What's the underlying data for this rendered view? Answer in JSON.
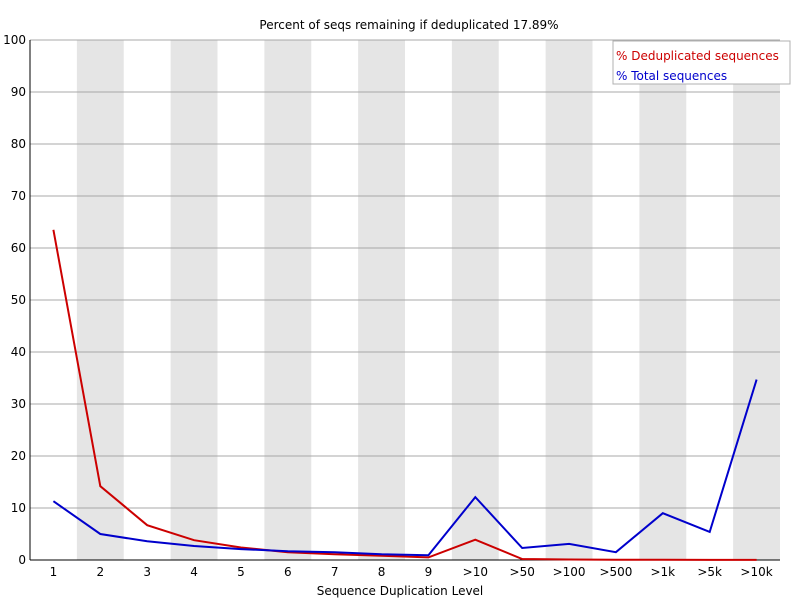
{
  "chart_data": {
    "type": "line",
    "title": "Percent of seqs remaining if deduplicated 17.89%",
    "xlabel": "Sequence Duplication Level",
    "ylabel": "",
    "ylim": [
      0,
      100
    ],
    "yticks": [
      0,
      10,
      20,
      30,
      40,
      50,
      60,
      70,
      80,
      90,
      100
    ],
    "grid": true,
    "legend_position": "top-right",
    "categories": [
      "1",
      "2",
      "3",
      "4",
      "5",
      "6",
      "7",
      "8",
      "9",
      ">10",
      ">50",
      ">100",
      ">500",
      ">1k",
      ">5k",
      ">10k"
    ],
    "series": [
      {
        "name": "% Deduplicated sequences",
        "color": "#cc0000",
        "values": [
          63.5,
          14.2,
          6.7,
          3.8,
          2.4,
          1.5,
          1.1,
          0.8,
          0.5,
          3.9,
          0.2,
          0.1,
          0.05,
          0.05,
          0.02,
          0.02
        ]
      },
      {
        "name": "% Total sequences",
        "color": "#0000cc",
        "values": [
          11.3,
          5.0,
          3.6,
          2.7,
          2.1,
          1.7,
          1.5,
          1.1,
          0.9,
          12.1,
          2.3,
          3.1,
          1.5,
          9.0,
          5.4,
          34.7
        ]
      }
    ]
  }
}
